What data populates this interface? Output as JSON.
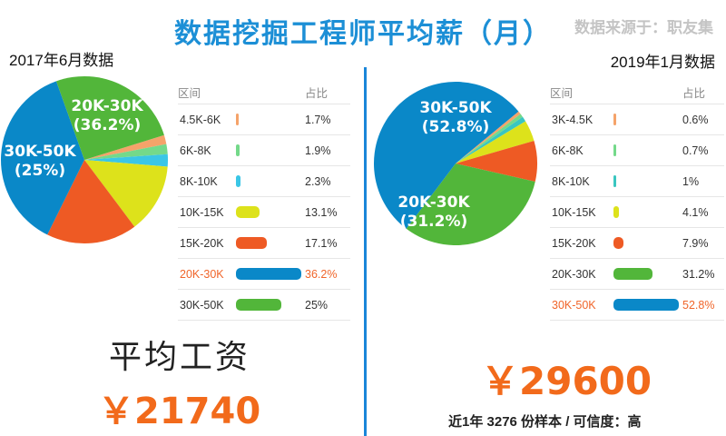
{
  "header": {
    "title": "数据挖掘工程师平均薪（月）",
    "source": "数据来源于：职友集"
  },
  "summary": {
    "avg_label": "平均工资",
    "avg_2017": "￥21740",
    "avg_2019": "￥29600",
    "note_2019": "近1年 3276 份样本 / 可信度：高"
  },
  "legend_headers": {
    "range": "区间",
    "share": "占比"
  },
  "chart_data": [
    {
      "type": "pie",
      "title": "2017年6月数据",
      "slices": [
        {
          "label": "4.5K-6K",
          "value": 1.7,
          "display": "1.7%",
          "color": "#f5a36a"
        },
        {
          "label": "6K-8K",
          "value": 1.9,
          "display": "1.9%",
          "color": "#74d98a"
        },
        {
          "label": "8K-10K",
          "value": 2.3,
          "display": "2.3%",
          "color": "#3ac6e6"
        },
        {
          "label": "10K-15K",
          "value": 13.1,
          "display": "13.1%",
          "color": "#dde21b"
        },
        {
          "label": "15K-20K",
          "value": 17.1,
          "display": "17.1%",
          "color": "#ee5a24"
        },
        {
          "label": "20K-30K",
          "value": 36.2,
          "display": "36.2%",
          "color": "#0a88c8",
          "highlight": true
        },
        {
          "label": "30K-50K",
          "value": 25,
          "display": "25%",
          "color": "#52b63a"
        }
      ],
      "pie_labels": [
        {
          "text": "20K-30K",
          "text2": "(36.2%)",
          "slice": "20K-30K"
        },
        {
          "text": "30K-50K",
          "text2": "(25%)",
          "slice": "30K-50K"
        }
      ]
    },
    {
      "type": "pie",
      "title": "2019年1月数据",
      "slices": [
        {
          "label": "3K-4.5K",
          "value": 0.6,
          "display": "0.6%",
          "color": "#f5a36a"
        },
        {
          "label": "6K-8K",
          "value": 0.7,
          "display": "0.7%",
          "color": "#74d98a"
        },
        {
          "label": "8K-10K",
          "value": 1,
          "display": "1%",
          "color": "#3ac6c0"
        },
        {
          "label": "10K-15K",
          "value": 4.1,
          "display": "4.1%",
          "color": "#dde21b"
        },
        {
          "label": "15K-20K",
          "value": 7.9,
          "display": "7.9%",
          "color": "#ee5a24"
        },
        {
          "label": "20K-30K",
          "value": 31.2,
          "display": "31.2%",
          "color": "#52b63a"
        },
        {
          "label": "30K-50K",
          "value": 52.8,
          "display": "52.8%",
          "color": "#0a88c8",
          "highlight": true
        }
      ],
      "pie_labels": [
        {
          "text": "30K-50K",
          "text2": "(52.8%)",
          "slice": "30K-50K"
        },
        {
          "text": "20K-30K",
          "text2": "(31.2%)",
          "slice": "20K-30K"
        }
      ]
    }
  ]
}
